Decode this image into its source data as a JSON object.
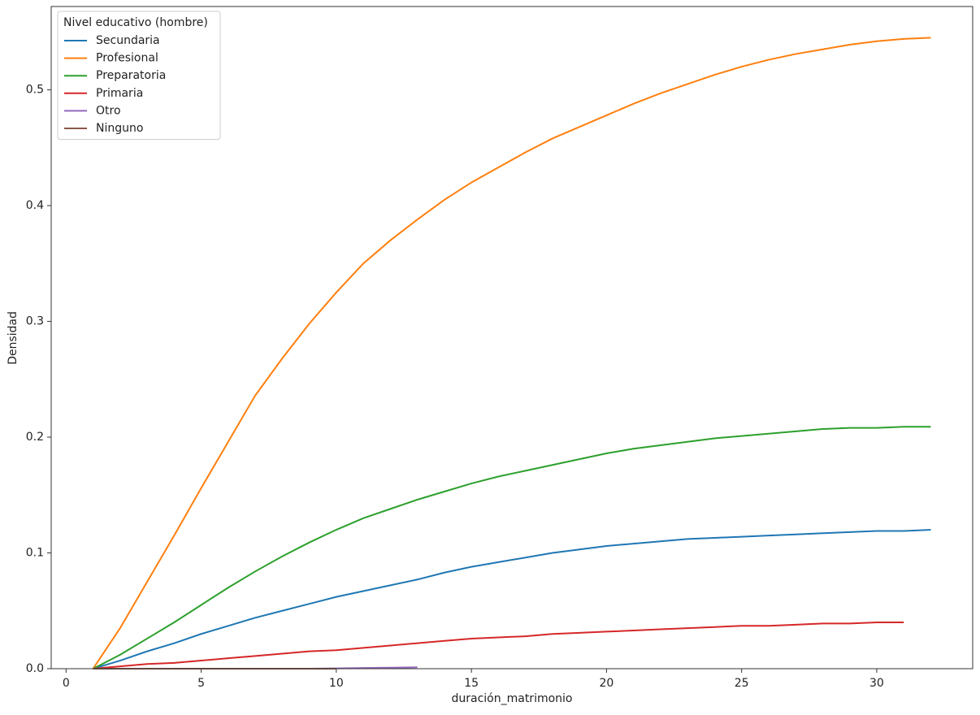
{
  "chart_data": {
    "type": "line",
    "xlabel": "duración_matrimonio",
    "ylabel": "Densidad",
    "legend_title": "Nivel educativo (hombre)",
    "legend": "upper left",
    "x": [
      1,
      2,
      3,
      4,
      5,
      6,
      7,
      8,
      9,
      10,
      11,
      12,
      13,
      14,
      15,
      16,
      17,
      18,
      19,
      20,
      21,
      22,
      23,
      24,
      25,
      26,
      27,
      28,
      29,
      30,
      31,
      32
    ],
    "series": [
      {
        "name": "Secundaria",
        "color": "#1f77b4",
        "values": [
          0,
          0.007,
          0.015,
          0.022,
          0.03,
          0.037,
          0.044,
          0.05,
          0.056,
          0.062,
          0.067,
          0.072,
          0.077,
          0.083,
          0.088,
          0.092,
          0.096,
          0.1,
          0.103,
          0.106,
          0.108,
          0.11,
          0.112,
          0.113,
          0.114,
          0.115,
          0.116,
          0.117,
          0.118,
          0.119,
          0.119,
          0.12
        ]
      },
      {
        "name": "Profesional",
        "color": "#ff7f0e",
        "values": [
          0,
          0.035,
          0.075,
          0.115,
          0.156,
          0.196,
          0.236,
          0.268,
          0.298,
          0.325,
          0.35,
          0.37,
          0.388,
          0.405,
          0.42,
          0.433,
          0.446,
          0.458,
          0.468,
          0.478,
          0.488,
          0.497,
          0.505,
          0.513,
          0.52,
          0.526,
          0.531,
          0.535,
          0.539,
          0.542,
          0.544,
          0.545
        ]
      },
      {
        "name": "Preparatoria",
        "color": "#2ca02c",
        "values": [
          0,
          0.012,
          0.026,
          0.04,
          0.055,
          0.07,
          0.084,
          0.097,
          0.109,
          0.12,
          0.13,
          0.138,
          0.146,
          0.153,
          0.16,
          0.166,
          0.171,
          0.176,
          0.181,
          0.186,
          0.19,
          0.193,
          0.196,
          0.199,
          0.201,
          0.203,
          0.205,
          0.207,
          0.208,
          0.208,
          0.209,
          0.209
        ]
      },
      {
        "name": "Primaria",
        "color": "#d62728",
        "values": [
          0,
          0.002,
          0.004,
          0.005,
          0.007,
          0.009,
          0.011,
          0.013,
          0.015,
          0.016,
          0.018,
          0.02,
          0.022,
          0.024,
          0.026,
          0.027,
          0.028,
          0.03,
          0.031,
          0.032,
          0.033,
          0.034,
          0.035,
          0.036,
          0.037,
          0.037,
          0.038,
          0.039,
          0.039,
          0.04,
          0.04,
          null
        ]
      },
      {
        "name": "Otro",
        "color": "#9467bd",
        "values": [
          0,
          0,
          0,
          0,
          0,
          0,
          0,
          0,
          0,
          0.0003,
          0.0006,
          0.0009,
          0.0012,
          null,
          null,
          null,
          null,
          null,
          null,
          null,
          null,
          null,
          null,
          null,
          null,
          null,
          null,
          null,
          null,
          null,
          null,
          null
        ]
      },
      {
        "name": "Ninguno",
        "color": "#8c564b",
        "values": [
          0,
          0,
          0,
          0,
          0,
          0,
          0,
          0,
          0,
          0,
          null,
          null,
          null,
          null,
          null,
          null,
          null,
          null,
          null,
          null,
          null,
          null,
          null,
          null,
          null,
          null,
          null,
          null,
          null,
          null,
          null,
          null
        ]
      }
    ],
    "xlim": [
      -0.55,
      33.55
    ],
    "xticks": [
      0,
      5,
      10,
      15,
      20,
      25,
      30
    ],
    "ylim": [
      0,
      0.572
    ],
    "yticks": [
      {
        "value": 0,
        "label": "0.0"
      },
      0.1,
      0.2,
      0.3,
      0.4,
      0.5
    ]
  }
}
